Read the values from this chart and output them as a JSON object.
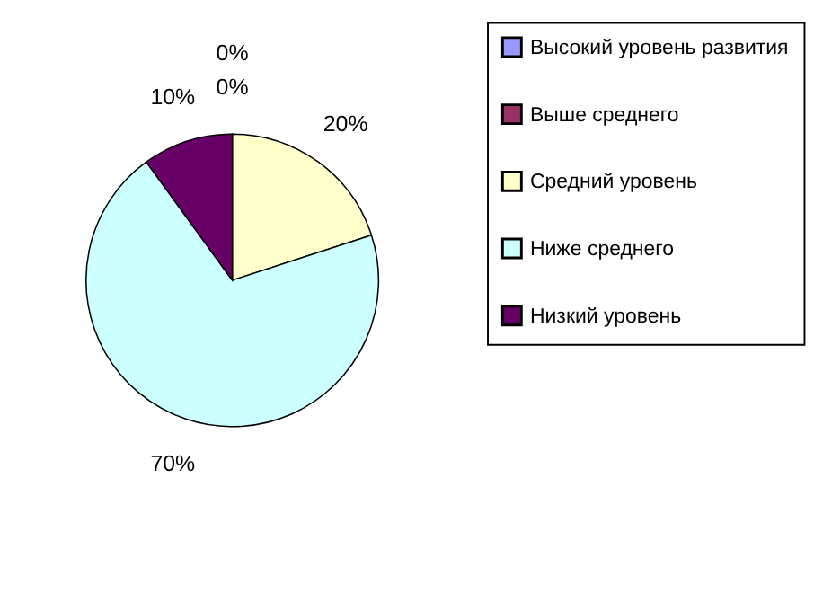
{
  "chart_data": {
    "type": "pie",
    "categories": [
      "Высокий уровень развития",
      "Выше среднего",
      "Средний уровень",
      "Ниже среднего",
      "Низкий уровень"
    ],
    "values": [
      0,
      0,
      20,
      70,
      10
    ],
    "colors": [
      "#9999ff",
      "#993366",
      "#ffffcc",
      "#ccffff",
      "#660066"
    ],
    "value_labels": [
      "0%",
      "0%",
      "20%",
      "70%",
      "10%"
    ],
    "legend": "right"
  }
}
